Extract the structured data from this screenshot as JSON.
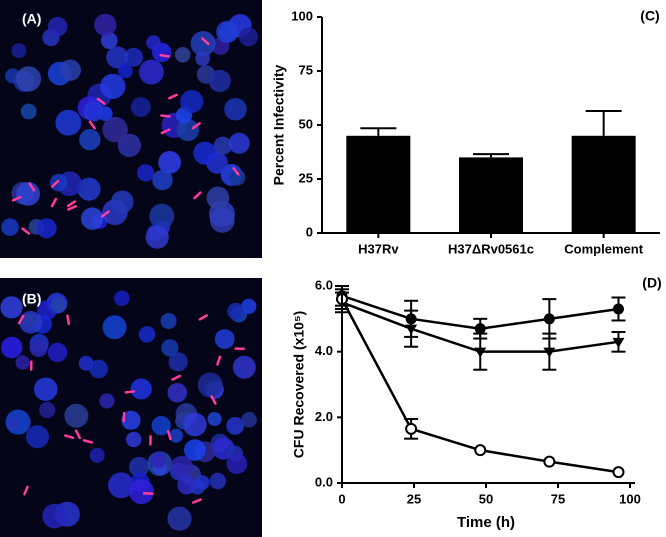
{
  "images": [
    {
      "label": "(A)"
    },
    {
      "label": "(B)"
    }
  ],
  "chart_data": [
    {
      "type": "bar",
      "panel": "(C)",
      "ylabel": "Percent Infectivity",
      "categories": [
        "H37Rv",
        "H37ΔRv0561c",
        "Complement"
      ],
      "values": [
        45,
        35,
        45
      ],
      "errors": [
        3.5,
        1.5,
        11.5
      ],
      "color": "#000000",
      "ylim": [
        0,
        100
      ],
      "yticks": [
        0,
        25,
        50,
        75,
        100
      ]
    },
    {
      "type": "line",
      "panel": "(D)",
      "ylabel": "CFU Recovered (x10⁵)",
      "xlabel": "Time (h)",
      "x": [
        0,
        24,
        48,
        72,
        96
      ],
      "series": [
        {
          "color": "#000000",
          "marker": "circle",
          "values": [
            5.7,
            5.0,
            4.7,
            5.0,
            5.3
          ],
          "errors": [
            0.3,
            0.55,
            0.3,
            0.6,
            0.35
          ]
        },
        {
          "color": "#000000",
          "marker": "triangle-down",
          "values": [
            5.5,
            4.7,
            4.0,
            4.0,
            4.3
          ],
          "errors": [
            0.3,
            0.55,
            0.55,
            0.55,
            0.3
          ]
        },
        {
          "color": "#000000",
          "marker": "open-circle",
          "values": [
            5.6,
            1.65,
            1.0,
            0.65,
            0.33
          ],
          "errors": [
            0.3,
            0.3,
            0,
            0,
            0
          ]
        }
      ],
      "xlim": [
        0,
        100
      ],
      "xticks": [
        0,
        25,
        50,
        75,
        100
      ],
      "ylim": [
        0,
        6
      ],
      "yticks": [
        {
          "value": 0,
          "label": "0.0"
        },
        {
          "value": 2,
          "label": "2.0"
        },
        {
          "value": 4,
          "label": "4.0"
        },
        {
          "value": 6,
          "label": "6.0"
        }
      ]
    }
  ]
}
